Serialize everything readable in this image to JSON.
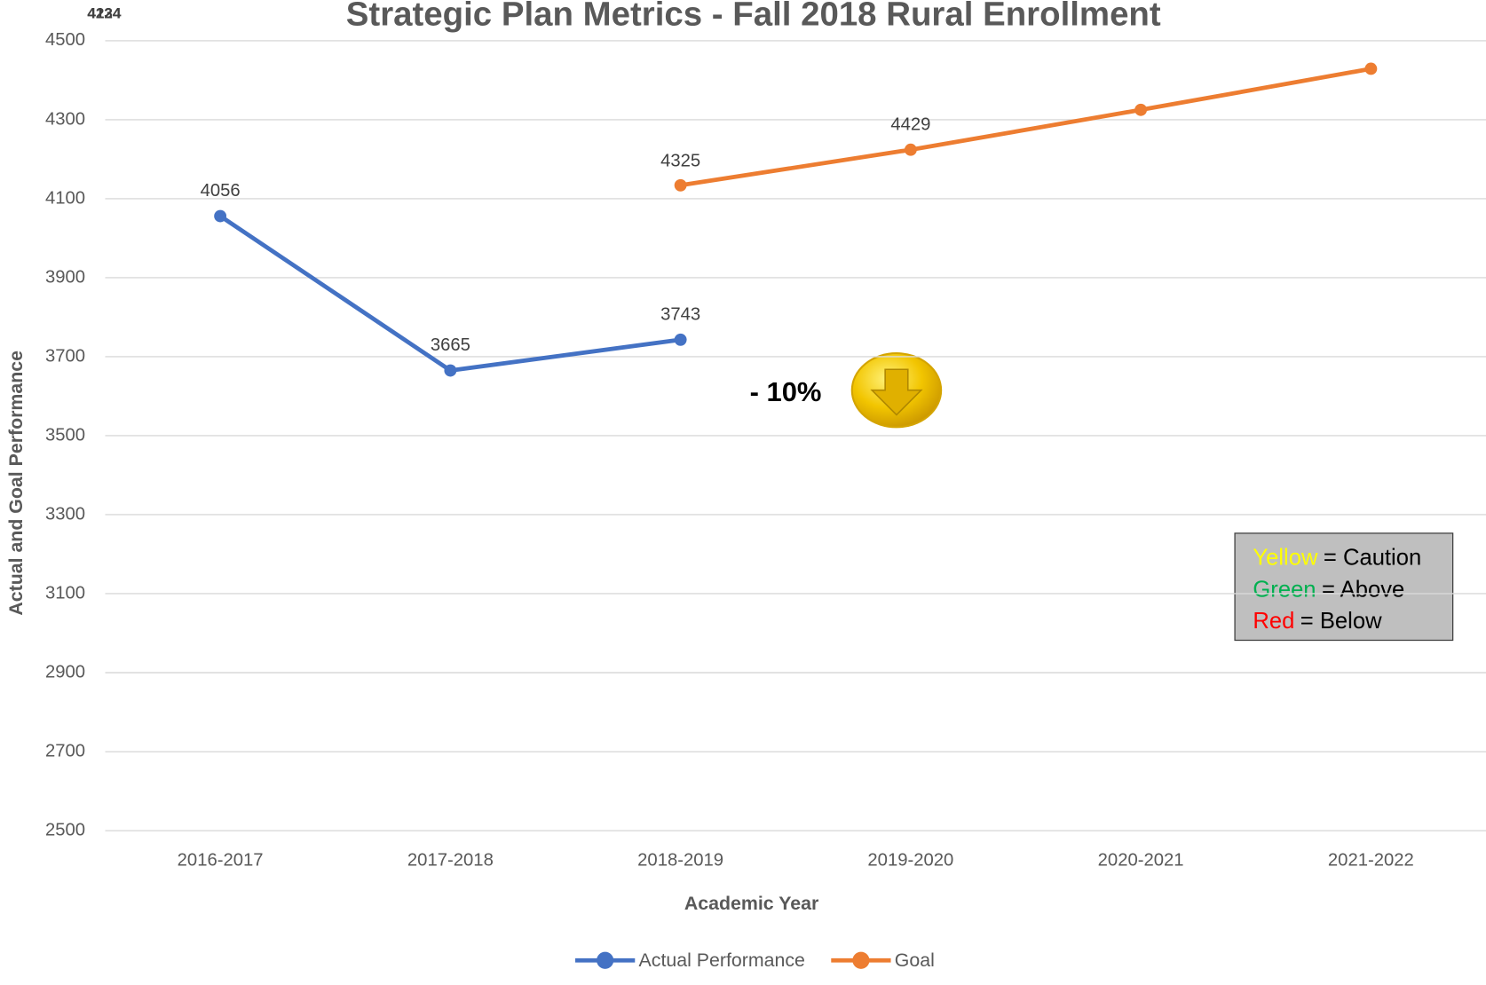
{
  "chart_data": {
    "type": "line",
    "title": "Strategic Plan Metrics - Fall 2018 Rural Enrollment",
    "x_label": "Academic Year",
    "y_label": "Actual and Goal Performance",
    "categories": [
      "2016-2017",
      "2017-2018",
      "2018-2019",
      "2019-2020",
      "2020-2021",
      "2021-2022"
    ],
    "series": [
      {
        "name": "Actual Performance",
        "color": "#4472c4",
        "values": [
          4056,
          3665,
          3743,
          null,
          null,
          null
        ]
      },
      {
        "name": "Goal",
        "color": "#ed7d31",
        "values": [
          null,
          null,
          4134,
          4224,
          4325,
          4429
        ]
      }
    ],
    "ylim": [
      2500,
      4500
    ],
    "yticks": [
      2500,
      2700,
      2900,
      3100,
      3300,
      3500,
      3700,
      3900,
      4100,
      4300,
      4500
    ],
    "grid": true,
    "legend": "bottom",
    "annotations": [
      "4224",
      "4134",
      "4325",
      "4429",
      "- 10%"
    ],
    "key": [
      {
        "word": "Yellow",
        "color": "#ffff00",
        "text": "= Caution"
      },
      {
        "word": "Green",
        "color": "#00b050",
        "text": "= Above"
      },
      {
        "word": "Red",
        "color": "#ff0000",
        "text": "= Below"
      }
    ]
  }
}
